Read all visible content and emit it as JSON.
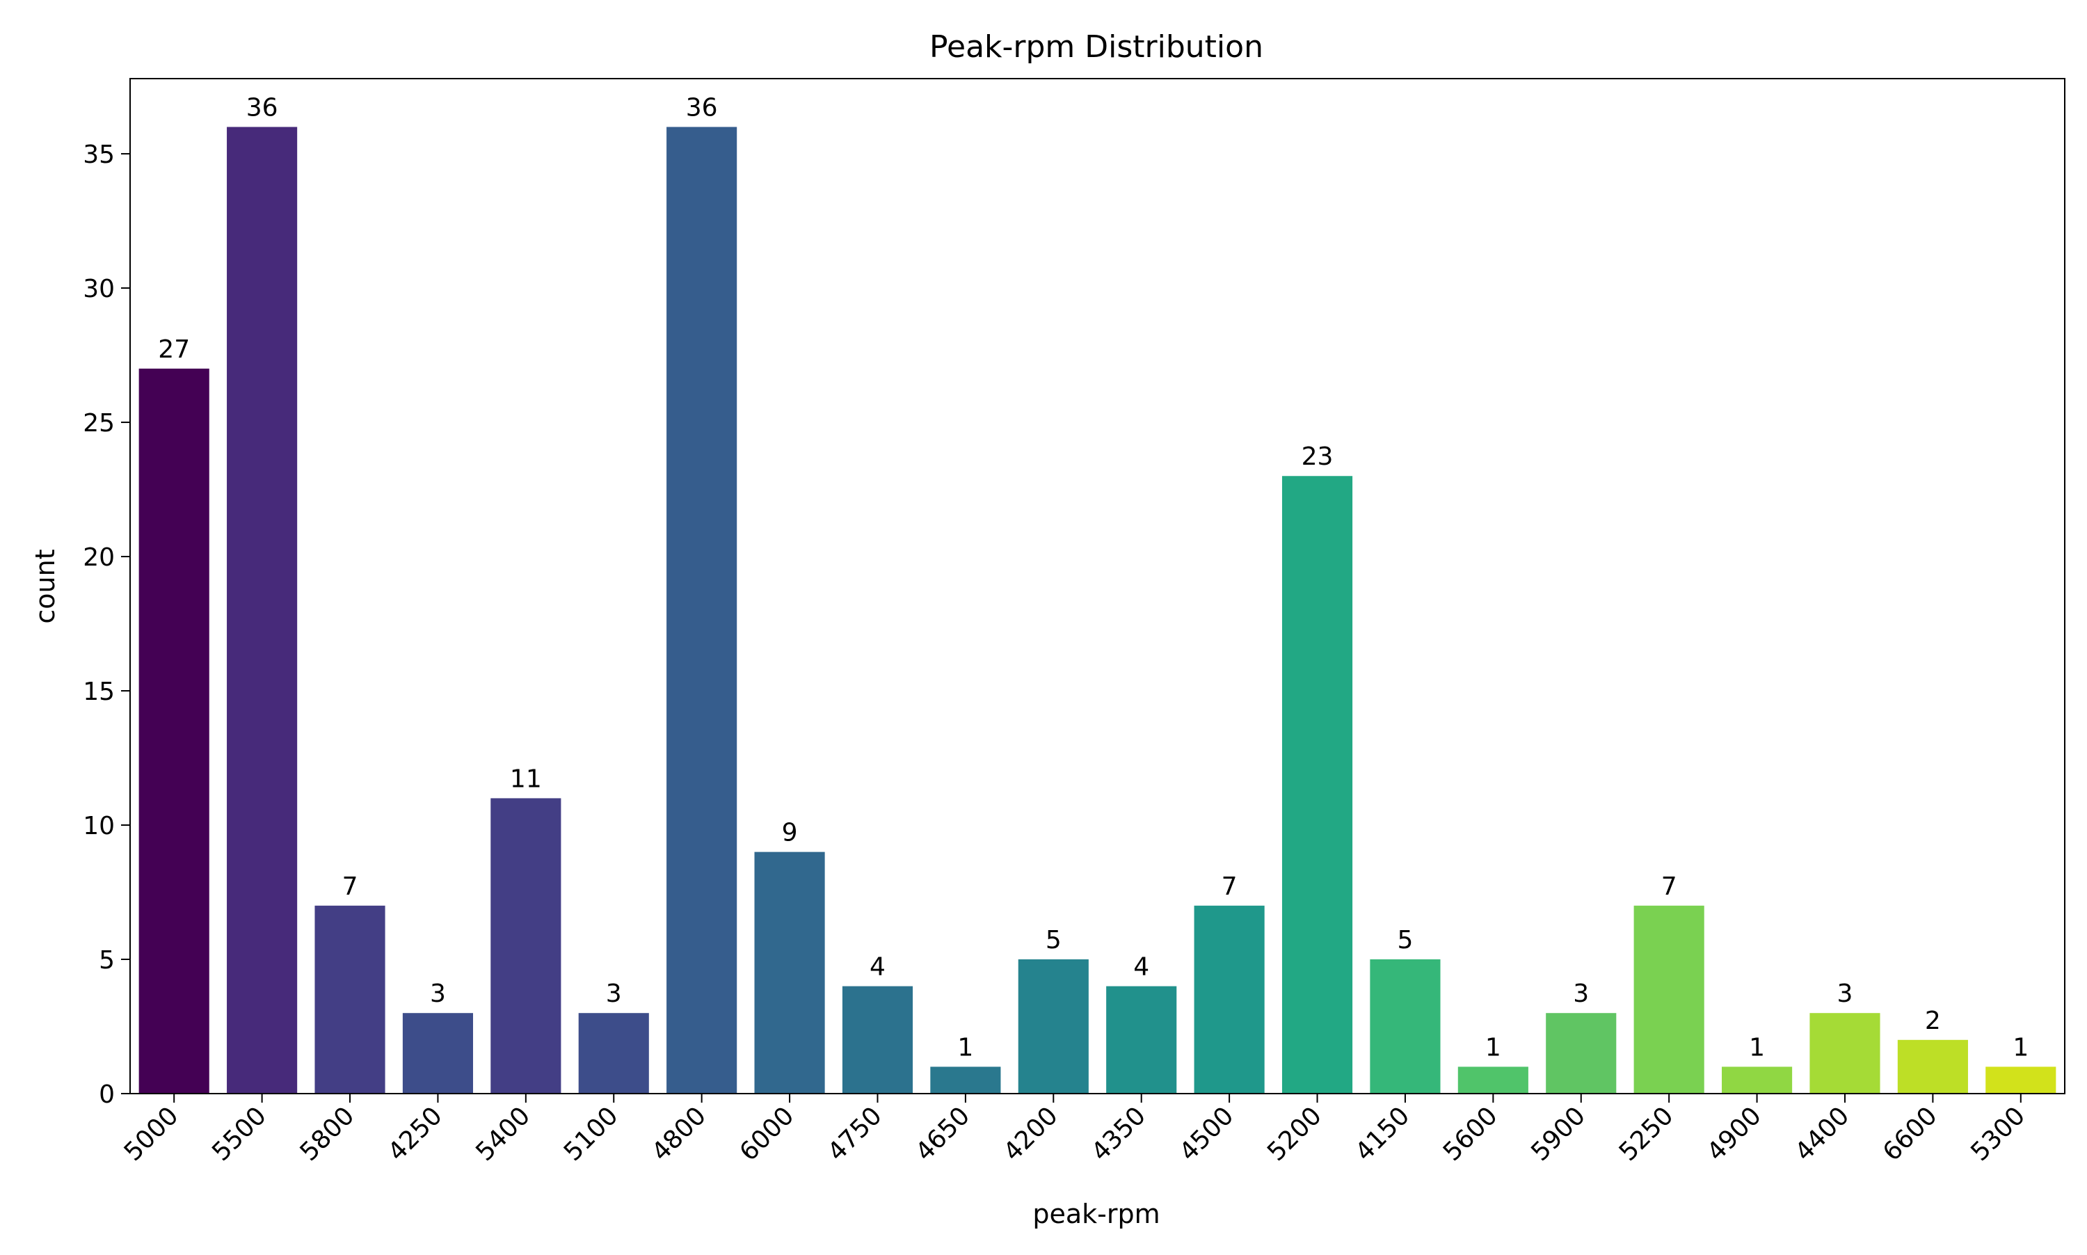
{
  "chart_data": {
    "type": "bar",
    "title": "Peak-rpm Distribution",
    "xlabel": "peak-rpm",
    "ylabel": "count",
    "categories": [
      "5000",
      "5500",
      "5800",
      "4250",
      "5400",
      "5100",
      "4800",
      "6000",
      "4750",
      "4650",
      "4200",
      "4350",
      "4500",
      "5200",
      "4150",
      "5600",
      "5900",
      "5250",
      "4900",
      "4400",
      "6600",
      "5300"
    ],
    "values": [
      27,
      36,
      7,
      3,
      11,
      3,
      36,
      9,
      4,
      1,
      5,
      4,
      7,
      23,
      5,
      1,
      3,
      7,
      1,
      3,
      2,
      1
    ],
    "data_labels": [
      "27",
      "36",
      "7",
      "3",
      "11",
      "3",
      "36",
      "9",
      "4",
      "1",
      "5",
      "4",
      "7",
      "23",
      "5",
      "1",
      "3",
      "7",
      "1",
      "3",
      "2",
      "1"
    ],
    "ylim": [
      0,
      37.8
    ],
    "yticks": [
      0,
      5,
      10,
      15,
      20,
      25,
      30,
      35
    ],
    "ytick_labels": [
      "0",
      "5",
      "10",
      "15",
      "20",
      "25",
      "30",
      "35"
    ],
    "grid": false,
    "legend": "none",
    "colors": [
      "#440154",
      "#472a7a",
      "#433e85",
      "#3d4d8a",
      "#433e85",
      "#3d4d8a",
      "#365d8d",
      "#31688e",
      "#2c728e",
      "#2a788e",
      "#25838e",
      "#21918c",
      "#1f988b",
      "#22a884",
      "#35b779",
      "#50c46a",
      "#60c563",
      "#7ad151",
      "#90d743",
      "#a5db36",
      "#bddf26",
      "#d2e21b"
    ]
  }
}
